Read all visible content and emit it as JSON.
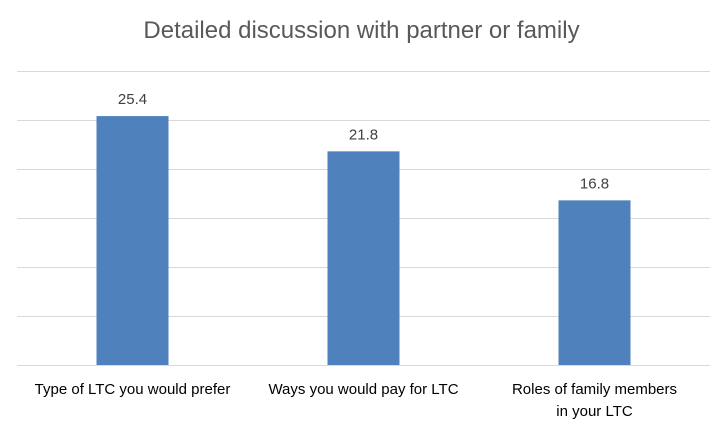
{
  "chart_data": {
    "type": "bar",
    "title": "Detailed discussion with partner or family",
    "xlabel": "",
    "ylabel": "",
    "categories": [
      "Type of LTC you would prefer",
      "Ways you would pay for LTC",
      "Roles of family members in your LTC"
    ],
    "category_lines": [
      [
        "Type of LTC you would prefer"
      ],
      [
        "Ways you would pay for LTC"
      ],
      [
        "Roles of family members",
        "in your LTC"
      ]
    ],
    "values": [
      25.4,
      21.8,
      16.8
    ],
    "data_labels": [
      "25.4",
      "21.8",
      "16.8"
    ],
    "ylim": [
      0,
      30
    ],
    "y_gridline_step": 5,
    "grid": true,
    "y_tick_labels_shown": false,
    "legend": "none",
    "colors": {
      "bar": "#4f81bd",
      "grid": "#d9d9d9",
      "title": "#595959"
    }
  }
}
